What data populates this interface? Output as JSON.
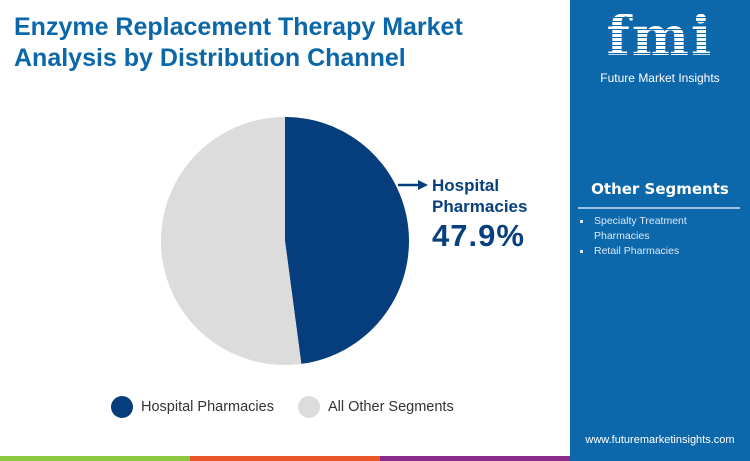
{
  "header": {
    "title": "Enzyme Replacement Therapy Market Analysis by Distribution Channel"
  },
  "brand": {
    "logo_text": "fmi",
    "name": "Future Market Insights",
    "url": "www.futuremarketinsights.com"
  },
  "sidebar": {
    "title": "Other Segments",
    "items": [
      "Specialty Treatment Pharmacies",
      "Retail Pharmacies"
    ]
  },
  "chart_data": {
    "type": "pie",
    "categories": [
      "Hospital Pharmacies",
      "All Other Segments"
    ],
    "values": [
      47.9,
      52.1
    ],
    "colors": [
      "#063d7c",
      "#dcdcdc"
    ],
    "callout": {
      "label": "Hospital Pharmacies",
      "value": "47.9%"
    },
    "legend": {
      "position": "bottom",
      "items": [
        "Hospital Pharmacies",
        "All Other Segments"
      ]
    }
  },
  "footer_colors": [
    "#8dc63f",
    "#e8562a",
    "#8a2a8a"
  ]
}
